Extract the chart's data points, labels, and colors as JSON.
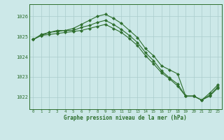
{
  "background_color": "#cce8e8",
  "grid_color": "#aacccc",
  "line_color": "#2d6e2d",
  "marker_color": "#2d6e2d",
  "title": "Graphe pression niveau de la mer (hPa)",
  "xlabel_ticks": [
    0,
    1,
    2,
    3,
    4,
    5,
    6,
    7,
    8,
    9,
    10,
    11,
    12,
    13,
    14,
    15,
    16,
    17,
    18,
    19,
    20,
    21,
    22,
    23
  ],
  "ylim": [
    1021.4,
    1026.6
  ],
  "yticks": [
    1022,
    1023,
    1024,
    1025,
    1026
  ],
  "series": [
    [
      1024.85,
      1025.05,
      1025.2,
      1025.3,
      1025.3,
      1025.4,
      1025.6,
      1025.8,
      1026.0,
      1026.1,
      1025.9,
      1025.65,
      1025.3,
      1024.95,
      1024.4,
      1024.05,
      1023.55,
      1023.35,
      1023.15,
      1022.05,
      1022.05,
      1021.85,
      1022.2,
      1022.6
    ],
    [
      1024.85,
      1025.1,
      1025.2,
      1025.25,
      1025.3,
      1025.3,
      1025.45,
      1025.55,
      1025.7,
      1025.8,
      1025.6,
      1025.35,
      1025.05,
      1024.7,
      1024.2,
      1023.8,
      1023.3,
      1022.95,
      1022.65,
      1022.05,
      1022.05,
      1021.85,
      1022.1,
      1022.5
    ],
    [
      1024.85,
      1025.05,
      1025.1,
      1025.15,
      1025.2,
      1025.25,
      1025.3,
      1025.4,
      1025.5,
      1025.6,
      1025.4,
      1025.2,
      1024.9,
      1024.55,
      1024.05,
      1023.65,
      1023.2,
      1022.9,
      1022.55,
      1022.05,
      1022.05,
      1021.85,
      1022.05,
      1022.45
    ]
  ]
}
